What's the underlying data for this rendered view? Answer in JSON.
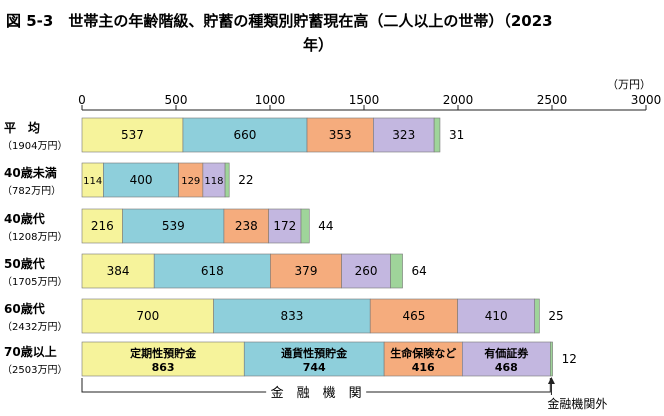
{
  "title_line1": "図 5-3　世帯主の年齢階級、貯蓄の種類別貯蓄現在高（二人以上の世帯）（2023",
  "title_line2": "年）",
  "unit": "（万円）",
  "colors": {
    "定期性預貯金": "#f6f39b",
    "通貨性預貯金": "#8ecfdb",
    "生命保険など": "#f5ac7d",
    "有価証券": "#c3b7e0",
    "金融機関外": "#9fd49a"
  },
  "chart_data": {
    "type": "bar",
    "orientation": "horizontal",
    "stacked": true,
    "xlim": [
      0,
      3000
    ],
    "xticks": [
      "0",
      "500",
      "1000",
      "1500",
      "2000",
      "2500",
      "3000"
    ],
    "categories": [
      {
        "name": "平　均",
        "total": "（1904万円）"
      },
      {
        "name": "40歳未満",
        "total": "（782万円）"
      },
      {
        "name": "40歳代",
        "total": "（1208万円）"
      },
      {
        "name": "50歳代",
        "total": "（1705万円）"
      },
      {
        "name": "60歳代",
        "total": "（2432万円）"
      },
      {
        "name": "70歳以上",
        "total": "（2503万円）"
      }
    ],
    "series": [
      {
        "name": "定期性預貯金",
        "values": [
          537,
          114,
          216,
          384,
          700,
          863
        ]
      },
      {
        "name": "通貨性預貯金",
        "values": [
          660,
          400,
          539,
          618,
          833,
          744
        ]
      },
      {
        "name": "生命保険など",
        "values": [
          353,
          129,
          238,
          379,
          465,
          416
        ]
      },
      {
        "name": "有価証券",
        "values": [
          323,
          118,
          172,
          260,
          410,
          468
        ]
      },
      {
        "name": "金融機関外",
        "values": [
          31,
          22,
          44,
          64,
          25,
          12
        ]
      }
    ],
    "bracket_label": "金　融　機　関",
    "outside_label": "金融機関外"
  }
}
